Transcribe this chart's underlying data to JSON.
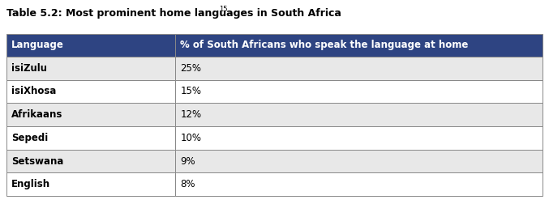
{
  "title_base": "Table 5.2: Most prominent home languages in South Africa",
  "title_superscript": "15",
  "header": [
    "Language",
    "% of South Africans who speak the language at home"
  ],
  "rows": [
    [
      "isiZulu",
      "25%"
    ],
    [
      "isiXhosa",
      "15%"
    ],
    [
      "Afrikaans",
      "12%"
    ],
    [
      "Sepedi",
      "10%"
    ],
    [
      "Setswana",
      "9%"
    ],
    [
      "English",
      "8%"
    ]
  ],
  "header_bg": "#2E4482",
  "header_text_color": "#FFFFFF",
  "row_bg": "#E8E8E8",
  "row_bg2": "#FFFFFF",
  "border_color": "#888888",
  "text_color": "#000000",
  "title_color": "#000000",
  "col_split": 0.315,
  "figure_bg": "#FFFFFF",
  "font_size": 8.5,
  "header_font_size": 8.5,
  "title_font_size": 9.0,
  "fig_width": 6.77,
  "fig_height": 2.52,
  "dpi": 100
}
